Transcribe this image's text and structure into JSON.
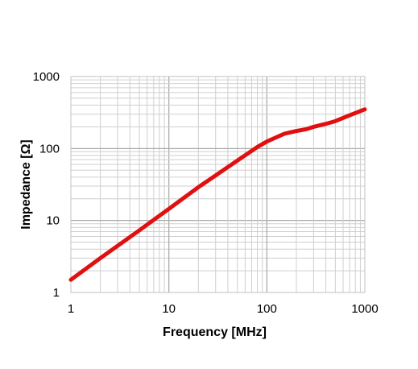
{
  "chart_data": {
    "type": "line",
    "x_scale": "log",
    "y_scale": "log",
    "xlabel": "Frequency [MHz]",
    "ylabel": "Impedance [Ω]",
    "xlim": [
      1,
      1000
    ],
    "ylim": [
      1,
      1000
    ],
    "x_ticks": [
      "1",
      "10",
      "100",
      "1000"
    ],
    "y_ticks": [
      "1",
      "10",
      "100",
      "1000"
    ],
    "grid": true,
    "legend": "none",
    "line_color": "#e01010",
    "series": [
      {
        "x": [
          1,
          2,
          5,
          10,
          20,
          50,
          80,
          100,
          150,
          200,
          250,
          300,
          400,
          500,
          700,
          1000
        ],
        "y": [
          1.5,
          3.0,
          7.3,
          14.5,
          29,
          68,
          105,
          125,
          160,
          175,
          185,
          200,
          220,
          240,
          290,
          350
        ]
      }
    ]
  }
}
